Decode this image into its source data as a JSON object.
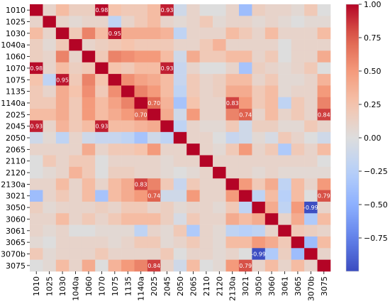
{
  "chart_data": {
    "type": "heatmap",
    "title": "",
    "xlabel": "",
    "ylabel": "",
    "labels": [
      "1010",
      "1025",
      "1030",
      "1040a",
      "1060",
      "1070",
      "1075",
      "1135",
      "1140a",
      "2025",
      "2045",
      "2050",
      "2065",
      "2110",
      "2120",
      "2130a",
      "3021",
      "3050",
      "3060",
      "3061",
      "3065",
      "3070b",
      "3075"
    ],
    "colormap": "coolwarm",
    "colors": {
      "low": "#3b4cc0",
      "mid": "#dddddd",
      "high": "#b40426"
    },
    "value_range": [
      -1.0,
      1.0
    ],
    "colorbar": {
      "ticks": [
        1.0,
        0.75,
        0.5,
        0.25,
        0.0,
        -0.25,
        -0.5,
        -0.75
      ],
      "tick_labels": [
        "1.00",
        "0.75",
        "0.50",
        "0.25",
        "0.00",
        "−0.25",
        "−0.50",
        "−0.75"
      ]
    },
    "matrix": [
      [
        1.0,
        0.1,
        0.3,
        0.15,
        0.15,
        0.98,
        0.25,
        0.2,
        0.2,
        0.3,
        0.93,
        -0.1,
        0.1,
        0.0,
        0.0,
        0.1,
        -0.4,
        0.15,
        0.1,
        0.1,
        0.05,
        0.2,
        0.0
      ],
      [
        0.1,
        1.0,
        0.1,
        0.05,
        0.1,
        0.1,
        -0.2,
        0.1,
        0.2,
        0.3,
        0.1,
        0.05,
        0.1,
        0.2,
        0.05,
        0.1,
        0.1,
        0.05,
        0.1,
        0.05,
        0.0,
        0.05,
        0.05
      ],
      [
        0.3,
        0.1,
        1.0,
        0.2,
        0.6,
        0.3,
        0.95,
        0.4,
        0.4,
        0.4,
        0.35,
        -0.2,
        0.1,
        0.1,
        0.1,
        0.3,
        0.2,
        0.1,
        0.3,
        0.1,
        0.1,
        0.1,
        0.3
      ],
      [
        0.15,
        0.05,
        0.2,
        1.0,
        0.1,
        0.15,
        0.2,
        0.25,
        0.2,
        0.2,
        0.2,
        0.1,
        0.1,
        0.2,
        0.35,
        0.1,
        0.1,
        0.1,
        0.1,
        0.0,
        0.1,
        0.1,
        0.1
      ],
      [
        0.15,
        0.1,
        0.6,
        0.1,
        1.0,
        0.2,
        0.6,
        0.55,
        0.5,
        0.5,
        0.3,
        -0.1,
        0.4,
        0.2,
        0.2,
        0.3,
        0.3,
        0.1,
        0.2,
        0.0,
        0.1,
        0.1,
        0.4
      ],
      [
        0.98,
        0.1,
        0.3,
        0.15,
        0.2,
        1.0,
        0.25,
        0.2,
        0.3,
        0.3,
        0.93,
        -0.15,
        0.1,
        0.0,
        0.0,
        0.1,
        -0.35,
        0.15,
        0.1,
        0.05,
        0.1,
        0.2,
        0.0
      ],
      [
        0.25,
        -0.2,
        0.95,
        0.2,
        0.6,
        0.25,
        1.0,
        0.55,
        0.45,
        0.4,
        0.3,
        -0.15,
        0.2,
        0.1,
        0.15,
        0.3,
        0.3,
        0.1,
        0.2,
        0.05,
        0.05,
        0.1,
        0.35
      ],
      [
        0.2,
        0.1,
        0.4,
        0.25,
        0.55,
        0.2,
        0.55,
        1.0,
        0.6,
        0.5,
        0.3,
        -0.2,
        0.2,
        0.1,
        0.15,
        0.4,
        0.4,
        0.2,
        0.3,
        0.05,
        0.1,
        0.1,
        0.5
      ],
      [
        0.2,
        0.2,
        0.4,
        0.2,
        0.5,
        0.3,
        0.45,
        0.6,
        1.0,
        0.7,
        0.35,
        -0.35,
        0.25,
        0.1,
        0.1,
        0.83,
        0.5,
        0.2,
        0.3,
        -0.2,
        0.2,
        0.1,
        0.6
      ],
      [
        0.3,
        0.3,
        0.4,
        0.2,
        0.5,
        0.3,
        0.4,
        0.5,
        0.7,
        1.0,
        0.4,
        -0.1,
        0.5,
        0.1,
        0.1,
        0.6,
        0.74,
        0.1,
        0.3,
        0.1,
        0.2,
        0.1,
        0.84
      ],
      [
        0.93,
        0.1,
        0.35,
        0.2,
        0.3,
        0.93,
        0.3,
        0.3,
        0.35,
        0.4,
        1.0,
        -0.2,
        0.1,
        0.05,
        0.05,
        0.2,
        -0.1,
        0.15,
        0.15,
        0.05,
        0.05,
        0.2,
        0.1
      ],
      [
        -0.1,
        0.05,
        -0.2,
        0.1,
        -0.1,
        -0.15,
        -0.15,
        -0.2,
        -0.35,
        -0.1,
        -0.2,
        1.0,
        0.1,
        0.1,
        0.0,
        -0.15,
        -0.1,
        0.05,
        -0.05,
        0.2,
        0.1,
        0.0,
        -0.1
      ],
      [
        0.1,
        0.1,
        0.1,
        0.1,
        0.4,
        0.1,
        0.2,
        0.2,
        0.25,
        0.5,
        0.1,
        0.1,
        1.0,
        0.1,
        0.05,
        0.2,
        0.5,
        0.1,
        0.2,
        -0.3,
        0.2,
        0.1,
        0.3
      ],
      [
        0.0,
        0.2,
        0.1,
        0.2,
        0.2,
        0.0,
        0.1,
        0.1,
        0.1,
        0.1,
        0.05,
        0.1,
        0.1,
        1.0,
        0.1,
        0.1,
        0.1,
        0.1,
        0.1,
        0.1,
        0.1,
        0.1,
        0.0
      ],
      [
        0.0,
        0.05,
        0.1,
        0.35,
        0.2,
        0.0,
        0.15,
        0.15,
        0.1,
        0.1,
        0.05,
        0.0,
        0.05,
        0.1,
        1.0,
        0.1,
        0.1,
        0.05,
        0.1,
        0.05,
        0.05,
        0.05,
        0.05
      ],
      [
        0.1,
        0.1,
        0.3,
        0.1,
        0.3,
        0.1,
        0.3,
        0.4,
        0.83,
        0.6,
        0.2,
        -0.15,
        0.2,
        0.1,
        0.1,
        1.0,
        0.5,
        0.2,
        0.4,
        -0.2,
        0.3,
        0.1,
        0.5
      ],
      [
        -0.4,
        0.1,
        0.2,
        0.1,
        0.3,
        -0.35,
        0.3,
        0.4,
        0.5,
        0.74,
        -0.1,
        -0.1,
        0.5,
        0.1,
        0.1,
        0.5,
        1.0,
        -0.2,
        0.3,
        -0.25,
        0.3,
        0.0,
        0.79
      ],
      [
        0.15,
        0.05,
        0.1,
        0.1,
        0.1,
        0.15,
        0.1,
        0.2,
        0.2,
        0.1,
        0.15,
        0.05,
        0.1,
        0.1,
        0.05,
        0.2,
        -0.2,
        1.0,
        0.4,
        -0.2,
        0.5,
        -0.99,
        0.1
      ],
      [
        0.1,
        0.1,
        0.3,
        0.1,
        0.2,
        0.1,
        0.2,
        0.3,
        0.3,
        0.3,
        0.15,
        -0.05,
        0.2,
        0.1,
        0.1,
        0.4,
        0.3,
        0.4,
        1.0,
        0.1,
        0.4,
        -0.3,
        0.3
      ],
      [
        0.1,
        0.05,
        0.1,
        0.0,
        0.0,
        0.05,
        0.05,
        0.05,
        -0.2,
        0.1,
        0.05,
        0.2,
        -0.3,
        0.1,
        0.05,
        -0.2,
        -0.25,
        -0.2,
        0.1,
        1.0,
        0.2,
        0.15,
        0.1
      ],
      [
        0.05,
        0.0,
        0.1,
        0.1,
        0.1,
        0.1,
        0.05,
        0.1,
        0.2,
        0.2,
        0.05,
        0.1,
        0.2,
        0.1,
        0.05,
        0.3,
        0.3,
        0.5,
        0.4,
        0.2,
        1.0,
        -0.4,
        0.3
      ],
      [
        0.2,
        0.05,
        0.1,
        0.1,
        0.1,
        0.2,
        0.1,
        0.1,
        0.1,
        0.1,
        0.2,
        0.0,
        0.1,
        0.1,
        0.05,
        0.1,
        0.0,
        -0.99,
        -0.3,
        0.15,
        -0.4,
        1.0,
        0.1
      ],
      [
        0.0,
        0.05,
        0.3,
        0.1,
        0.4,
        0.0,
        0.35,
        0.5,
        0.6,
        0.84,
        0.1,
        -0.1,
        0.3,
        0.0,
        0.05,
        0.5,
        0.79,
        0.1,
        0.3,
        0.1,
        0.3,
        0.1,
        1.0
      ]
    ],
    "annotated_threshold": 0.7,
    "annotations_exclude_diagonal": true
  }
}
